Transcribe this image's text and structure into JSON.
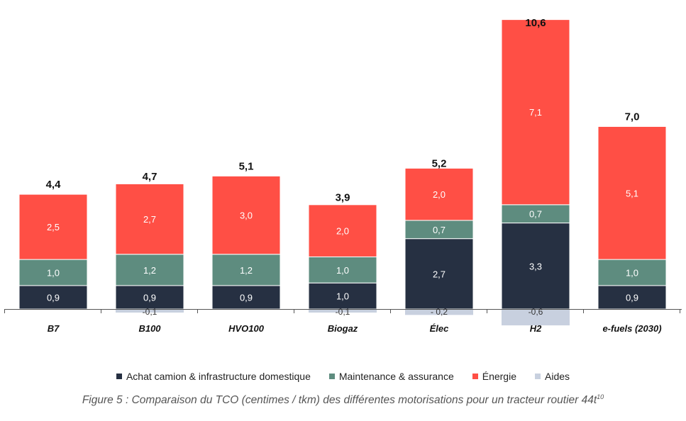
{
  "chart_data": {
    "type": "bar",
    "stacked": true,
    "categories": [
      "B7",
      "B100",
      "HVO100",
      "Biogaz",
      "Élec",
      "H2",
      "e-fuels (2030)"
    ],
    "series": [
      {
        "name": "Achat camion & infrastructure domestique",
        "color": "#263042",
        "values": [
          0.9,
          0.9,
          0.9,
          1.0,
          2.7,
          3.3,
          0.9
        ],
        "labels": [
          "0,9",
          "0,9",
          "0,9",
          "1,0",
          "2,7",
          "3,3",
          "0,9"
        ]
      },
      {
        "name": "Maintenance & assurance",
        "color": "#5e8c7f",
        "values": [
          1.0,
          1.2,
          1.2,
          1.0,
          0.7,
          0.7,
          1.0
        ],
        "labels": [
          "1,0",
          "1,2",
          "1,2",
          "1,0",
          "0,7",
          "0,7",
          "1,0"
        ]
      },
      {
        "name": "Énergie",
        "color": "#ff4f45",
        "values": [
          2.5,
          2.7,
          3.0,
          2.0,
          2.0,
          7.1,
          5.1
        ],
        "labels": [
          "2,5",
          "2,7",
          "3,0",
          "2,0",
          "2,0",
          "7,1",
          "5,1"
        ]
      },
      {
        "name": "Aides",
        "color": "#c8d0df",
        "values": [
          0,
          -0.1,
          0,
          -0.1,
          -0.2,
          -0.6,
          0
        ],
        "labels": [
          "",
          "-0,1",
          "",
          "-0,1",
          "- 0,2",
          "-0,6",
          ""
        ]
      }
    ],
    "totals": [
      4.4,
      4.7,
      5.1,
      3.9,
      5.2,
      10.6,
      7.0
    ],
    "total_labels": [
      "4,4",
      "4,7",
      "5,1",
      "3,9",
      "5,2",
      "10,6",
      "7,0"
    ],
    "ylim": [
      -0.6,
      10.6
    ],
    "grid": false,
    "legend_position": "bottom",
    "caption": "Figure 5 : Comparaison du TCO (centimes / tkm) des différentes motorisations pour un tracteur routier 44t",
    "caption_sup": "10"
  }
}
